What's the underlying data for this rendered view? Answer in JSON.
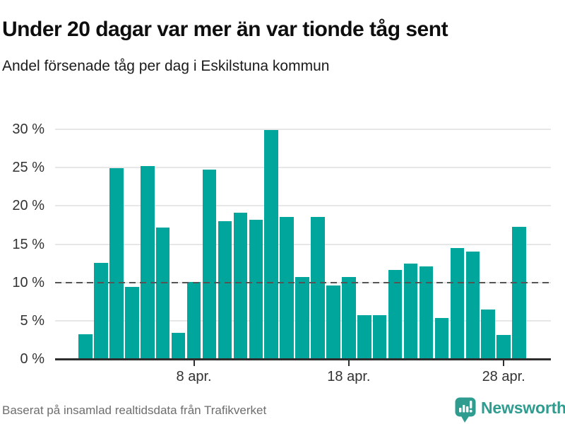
{
  "header": {
    "title": "Under 20 dagar var mer än var tionde tåg sent",
    "subtitle": "Andel försenade tåg per dag i Eskilstuna kommun"
  },
  "chart_data": {
    "type": "bar",
    "title": "Under 20 dagar var mer än var tionde tåg sent",
    "subtitle": "Andel försenade tåg per dag i Eskilstuna kommun",
    "unit": "%",
    "categories": [
      "1 apr.",
      "2 apr.",
      "3 apr.",
      "4 apr.",
      "5 apr.",
      "6 apr.",
      "7 apr.",
      "8 apr.",
      "9 apr.",
      "10 apr.",
      "11 apr.",
      "12 apr.",
      "13 apr.",
      "14 apr.",
      "15 apr.",
      "16 apr.",
      "17 apr.",
      "18 apr.",
      "19 apr.",
      "20 apr.",
      "21 apr.",
      "22 apr.",
      "23 apr.",
      "24 apr.",
      "25 apr.",
      "26 apr.",
      "27 apr.",
      "28 apr.",
      "29 apr."
    ],
    "values": [
      3.2,
      12.6,
      24.9,
      9.4,
      25.2,
      17.2,
      3.4,
      10.1,
      24.7,
      18.0,
      19.1,
      18.2,
      29.9,
      18.6,
      10.7,
      18.6,
      9.6,
      10.7,
      5.7,
      5.7,
      11.6,
      12.5,
      12.1,
      5.4,
      14.5,
      14.0,
      6.5,
      3.1,
      17.3
    ],
    "xlabel": "",
    "ylabel": "",
    "ylim": [
      0,
      30
    ],
    "yticks": [
      0,
      5,
      10,
      15,
      20,
      25,
      30
    ],
    "ytick_labels": [
      "0 %",
      "5 %",
      "10 %",
      "15 %",
      "20 %",
      "25 %",
      "30 %"
    ],
    "xticks": [
      {
        "index": 7,
        "label": "8 apr."
      },
      {
        "index": 17,
        "label": "18 apr."
      },
      {
        "index": 27,
        "label": "28 apr."
      }
    ],
    "reference_line": {
      "value": 10,
      "style": "dashed",
      "color": "#555555"
    },
    "grid": true,
    "legend": false,
    "bar_color": "#00a69c"
  },
  "footer": {
    "source": "Baserat på insamlad realtidsdata från Trafikverket",
    "brand": "Newsworthy"
  },
  "colors": {
    "bar": "#00a69c",
    "brand_teal": "#2f9c90",
    "grid": "#e7e7e7",
    "axis": "#2e2e2e",
    "reference": "#555555",
    "text": "#333333",
    "muted_text": "#6e6e6e"
  }
}
